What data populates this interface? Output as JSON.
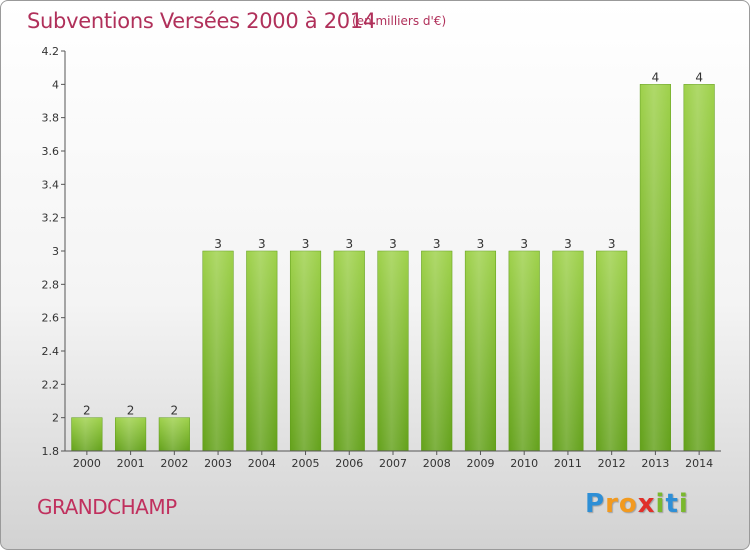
{
  "title": "Subventions Versées 2000 à 2014",
  "subtitle": "(en milliers d'€)",
  "commune": "GRANDCHAMP",
  "logo": {
    "letters": [
      "P",
      "r",
      "o",
      "x",
      "i",
      "t",
      "i"
    ],
    "colors": [
      "#2e8fd6",
      "#f29a1f",
      "#f29a1f",
      "#e0302a",
      "#7ab82e",
      "#2e8fd6",
      "#7ab82e"
    ]
  },
  "chart_data": {
    "type": "bar",
    "categories": [
      "2000",
      "2001",
      "2002",
      "2003",
      "2004",
      "2005",
      "2006",
      "2007",
      "2008",
      "2009",
      "2010",
      "2011",
      "2012",
      "2013",
      "2014"
    ],
    "values": [
      2,
      2,
      2,
      3,
      3,
      3,
      3,
      3,
      3,
      3,
      3,
      3,
      3,
      4,
      4
    ],
    "data_labels": [
      "2",
      "2",
      "2",
      "3",
      "3",
      "3",
      "3",
      "3",
      "3",
      "3",
      "3",
      "3",
      "3",
      "4",
      "4"
    ],
    "ylim": [
      1.8,
      4.2
    ],
    "yticks": [
      1.8,
      2,
      2.2,
      2.4,
      2.6,
      2.8,
      3,
      3.2,
      3.4,
      3.6,
      3.8,
      4,
      4.2
    ],
    "ytick_labels": [
      "1.8",
      "2",
      "2.2",
      "2.4",
      "2.6",
      "2.8",
      "3",
      "3.2",
      "3.4",
      "3.6",
      "3.8",
      "4",
      "4.2"
    ],
    "grid": false,
    "bar_color": "#7fbf2a"
  }
}
